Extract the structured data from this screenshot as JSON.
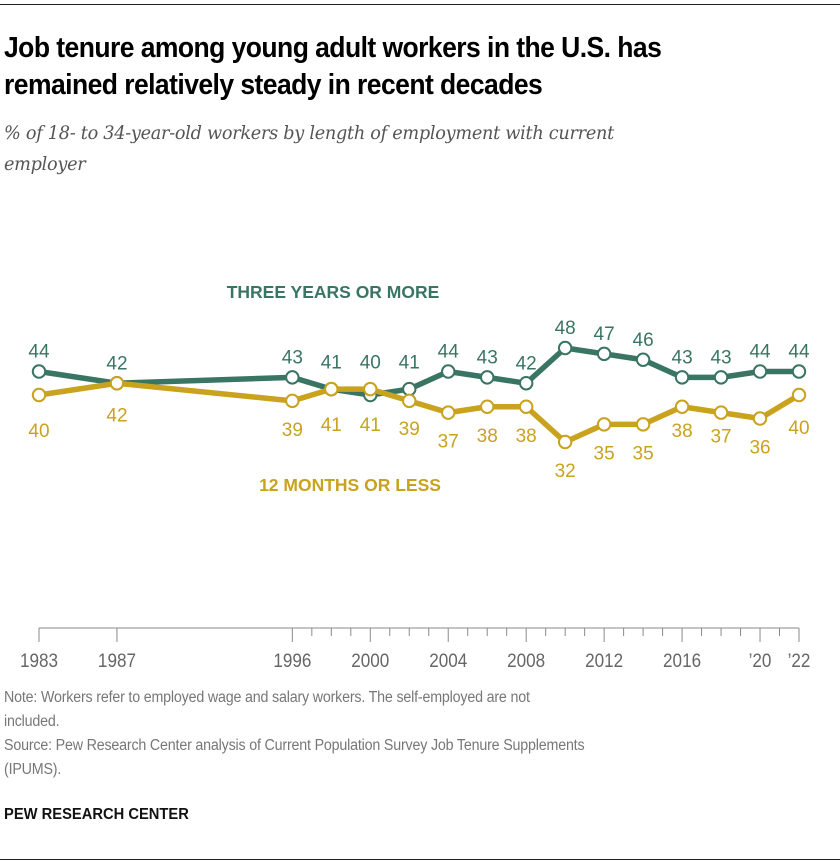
{
  "header": {
    "title_line1": "Job tenure among young adult workers in the U.S. has",
    "title_line2": "remained relatively steady in recent decades",
    "subtitle_line1": "% of 18- to 34-year-old workers by length of employment with current",
    "subtitle_line2": "employer"
  },
  "chart_data": {
    "type": "line",
    "title": "Job tenure among young adult workers in the U.S. has remained relatively steady in recent decades",
    "subtitle": "% of 18- to 34-year-old workers by length of employment with current employer",
    "xlabel": "",
    "ylabel": "",
    "grid": false,
    "x": [
      1983,
      1987,
      1996,
      1998,
      2000,
      2002,
      2004,
      2006,
      2008,
      2010,
      2012,
      2014,
      2016,
      2018,
      2020,
      2022
    ],
    "x_range": [
      1983,
      2022
    ],
    "x_ticks_major": [
      1983,
      1987,
      1996,
      2000,
      2004,
      2008,
      2012,
      2016,
      2020,
      2022
    ],
    "x_tick_labels": [
      "1983",
      "1987",
      "1996",
      "2000",
      "2004",
      "2008",
      "2012",
      "2016",
      "’20",
      "’22"
    ],
    "x_minor_ticks_every_year_from": 1996,
    "series": [
      {
        "name": "THREE YEARS OR MORE",
        "color": "#3a7563",
        "values": [
          44,
          42,
          43,
          41,
          40,
          41,
          44,
          43,
          42,
          48,
          47,
          46,
          43,
          43,
          44,
          44
        ],
        "labels": [
          "44",
          "42",
          "43",
          "41",
          "40",
          "41",
          "44",
          "43",
          "42",
          "48",
          "47",
          "46",
          "43",
          "43",
          "44",
          "44"
        ]
      },
      {
        "name": "12 MONTHS OR LESS",
        "color": "#c9a21e",
        "values": [
          40,
          42,
          39,
          41,
          41,
          39,
          37,
          38,
          38,
          32,
          35,
          35,
          38,
          37,
          36,
          40
        ],
        "labels": [
          "40",
          "42",
          "39",
          "41",
          "41",
          "39",
          "37",
          "38",
          "38",
          "32",
          "35",
          "35",
          "38",
          "37",
          "36",
          "40"
        ]
      }
    ]
  },
  "footer": {
    "note_line1": "Note: Workers refer to employed wage and salary workers. The self-employed are not",
    "note_line2": "included.",
    "source_line1": "Source: Pew Research Center analysis of Current Population Survey Job Tenure Supplements",
    "source_line2": "(IPUMS).",
    "brand": "PEW RESEARCH CENTER"
  }
}
